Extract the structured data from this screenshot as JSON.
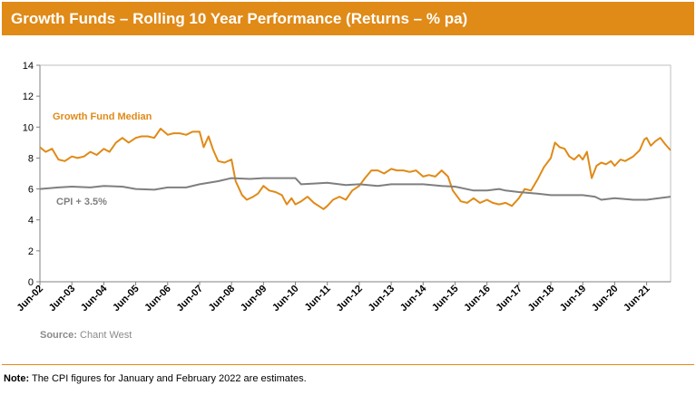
{
  "header": {
    "title": "Growth Funds – Rolling 10 Year Performance (Returns – % pa)"
  },
  "source": {
    "label": "Source:",
    "text": "Chant West"
  },
  "note": {
    "label": "Note:",
    "text": "The CPI figures for January and February 2022 are estimates."
  },
  "colors": {
    "header_bg": "#E08A17",
    "growth": "#E08A17",
    "cpi": "#7F7F7F"
  },
  "chart_data": {
    "type": "line",
    "title": "",
    "xlabel": "",
    "ylabel": "",
    "ylim": [
      0,
      14
    ],
    "y_ticks": [
      0,
      2,
      4,
      6,
      8,
      10,
      12,
      14
    ],
    "x_ticks": [
      "Jun-02",
      "Jun-03",
      "Jun-04",
      "Jun-05",
      "Jun-06",
      "Jun-07",
      "Jun-08",
      "Jun-09",
      "Jun-10",
      "Jun-11",
      "Jun-12",
      "Jun-13",
      "Jun-14",
      "Jun-15",
      "Jun-16",
      "Jun-17",
      "Jun-18",
      "Jun-19",
      "Jun-20",
      "Jun-21"
    ],
    "x_range": [
      2002.42,
      2022.17
    ],
    "grid": false,
    "series": [
      {
        "name": "Growth Fund Median",
        "color": "#E08A17",
        "points": [
          [
            2002.42,
            8.7
          ],
          [
            2002.6,
            8.4
          ],
          [
            2002.8,
            8.6
          ],
          [
            2003.0,
            7.9
          ],
          [
            2003.2,
            7.8
          ],
          [
            2003.42,
            8.1
          ],
          [
            2003.6,
            8.0
          ],
          [
            2003.8,
            8.1
          ],
          [
            2004.0,
            8.4
          ],
          [
            2004.2,
            8.2
          ],
          [
            2004.42,
            8.6
          ],
          [
            2004.6,
            8.4
          ],
          [
            2004.8,
            9.0
          ],
          [
            2005.0,
            9.3
          ],
          [
            2005.2,
            9.0
          ],
          [
            2005.42,
            9.3
          ],
          [
            2005.6,
            9.4
          ],
          [
            2005.8,
            9.4
          ],
          [
            2006.0,
            9.3
          ],
          [
            2006.2,
            9.9
          ],
          [
            2006.42,
            9.5
          ],
          [
            2006.6,
            9.6
          ],
          [
            2006.8,
            9.6
          ],
          [
            2007.0,
            9.5
          ],
          [
            2007.2,
            9.7
          ],
          [
            2007.42,
            9.7
          ],
          [
            2007.55,
            8.7
          ],
          [
            2007.7,
            9.4
          ],
          [
            2007.85,
            8.5
          ],
          [
            2008.0,
            7.8
          ],
          [
            2008.2,
            7.7
          ],
          [
            2008.42,
            7.9
          ],
          [
            2008.55,
            6.5
          ],
          [
            2008.75,
            5.6
          ],
          [
            2008.9,
            5.3
          ],
          [
            2009.1,
            5.5
          ],
          [
            2009.25,
            5.7
          ],
          [
            2009.42,
            6.2
          ],
          [
            2009.6,
            5.9
          ],
          [
            2009.8,
            5.8
          ],
          [
            2010.0,
            5.6
          ],
          [
            2010.15,
            5.0
          ],
          [
            2010.3,
            5.4
          ],
          [
            2010.42,
            5.0
          ],
          [
            2010.6,
            5.2
          ],
          [
            2010.8,
            5.5
          ],
          [
            2011.0,
            5.1
          ],
          [
            2011.15,
            4.9
          ],
          [
            2011.3,
            4.7
          ],
          [
            2011.42,
            4.9
          ],
          [
            2011.6,
            5.3
          ],
          [
            2011.8,
            5.5
          ],
          [
            2012.0,
            5.3
          ],
          [
            2012.2,
            5.9
          ],
          [
            2012.42,
            6.2
          ],
          [
            2012.6,
            6.7
          ],
          [
            2012.8,
            7.2
          ],
          [
            2013.0,
            7.2
          ],
          [
            2013.2,
            7.0
          ],
          [
            2013.42,
            7.3
          ],
          [
            2013.6,
            7.2
          ],
          [
            2013.8,
            7.2
          ],
          [
            2014.0,
            7.1
          ],
          [
            2014.2,
            7.2
          ],
          [
            2014.42,
            6.8
          ],
          [
            2014.6,
            6.9
          ],
          [
            2014.8,
            6.8
          ],
          [
            2015.0,
            7.2
          ],
          [
            2015.2,
            6.8
          ],
          [
            2015.35,
            5.9
          ],
          [
            2015.42,
            5.7
          ],
          [
            2015.6,
            5.2
          ],
          [
            2015.8,
            5.1
          ],
          [
            2016.0,
            5.4
          ],
          [
            2016.2,
            5.1
          ],
          [
            2016.42,
            5.3
          ],
          [
            2016.6,
            5.1
          ],
          [
            2016.8,
            5.0
          ],
          [
            2017.0,
            5.1
          ],
          [
            2017.2,
            4.9
          ],
          [
            2017.42,
            5.4
          ],
          [
            2017.6,
            6.0
          ],
          [
            2017.8,
            5.9
          ],
          [
            2018.0,
            6.6
          ],
          [
            2018.2,
            7.4
          ],
          [
            2018.42,
            8.0
          ],
          [
            2018.55,
            9.0
          ],
          [
            2018.7,
            8.7
          ],
          [
            2018.85,
            8.6
          ],
          [
            2019.0,
            8.1
          ],
          [
            2019.15,
            7.9
          ],
          [
            2019.3,
            8.2
          ],
          [
            2019.42,
            7.9
          ],
          [
            2019.55,
            8.4
          ],
          [
            2019.7,
            6.7
          ],
          [
            2019.85,
            7.5
          ],
          [
            2020.0,
            7.7
          ],
          [
            2020.15,
            7.6
          ],
          [
            2020.3,
            7.8
          ],
          [
            2020.42,
            7.5
          ],
          [
            2020.6,
            7.9
          ],
          [
            2020.75,
            7.8
          ],
          [
            2021.0,
            8.1
          ],
          [
            2021.2,
            8.5
          ],
          [
            2021.35,
            9.2
          ],
          [
            2021.42,
            9.3
          ],
          [
            2021.55,
            8.8
          ],
          [
            2021.7,
            9.1
          ],
          [
            2021.85,
            9.3
          ],
          [
            2022.0,
            8.9
          ],
          [
            2022.17,
            8.5
          ]
        ]
      },
      {
        "name": "CPI + 3.5%",
        "color": "#7F7F7F",
        "points": [
          [
            2002.42,
            6.0
          ],
          [
            2003.0,
            6.1
          ],
          [
            2003.42,
            6.15
          ],
          [
            2004.0,
            6.1
          ],
          [
            2004.42,
            6.2
          ],
          [
            2005.0,
            6.15
          ],
          [
            2005.42,
            6.0
          ],
          [
            2006.0,
            5.95
          ],
          [
            2006.42,
            6.1
          ],
          [
            2007.0,
            6.1
          ],
          [
            2007.42,
            6.3
          ],
          [
            2008.0,
            6.5
          ],
          [
            2008.42,
            6.7
          ],
          [
            2009.0,
            6.65
          ],
          [
            2009.42,
            6.7
          ],
          [
            2010.0,
            6.7
          ],
          [
            2010.42,
            6.7
          ],
          [
            2010.6,
            6.3
          ],
          [
            2011.0,
            6.35
          ],
          [
            2011.42,
            6.4
          ],
          [
            2012.0,
            6.25
          ],
          [
            2012.42,
            6.3
          ],
          [
            2013.0,
            6.2
          ],
          [
            2013.42,
            6.3
          ],
          [
            2014.0,
            6.3
          ],
          [
            2014.42,
            6.3
          ],
          [
            2015.0,
            6.2
          ],
          [
            2015.42,
            6.15
          ],
          [
            2016.0,
            5.9
          ],
          [
            2016.42,
            5.9
          ],
          [
            2016.8,
            6.0
          ],
          [
            2017.0,
            5.9
          ],
          [
            2017.42,
            5.8
          ],
          [
            2018.0,
            5.7
          ],
          [
            2018.42,
            5.6
          ],
          [
            2019.0,
            5.6
          ],
          [
            2019.42,
            5.6
          ],
          [
            2019.8,
            5.5
          ],
          [
            2020.0,
            5.3
          ],
          [
            2020.42,
            5.4
          ],
          [
            2021.0,
            5.3
          ],
          [
            2021.42,
            5.3
          ],
          [
            2022.17,
            5.5
          ]
        ]
      }
    ]
  }
}
